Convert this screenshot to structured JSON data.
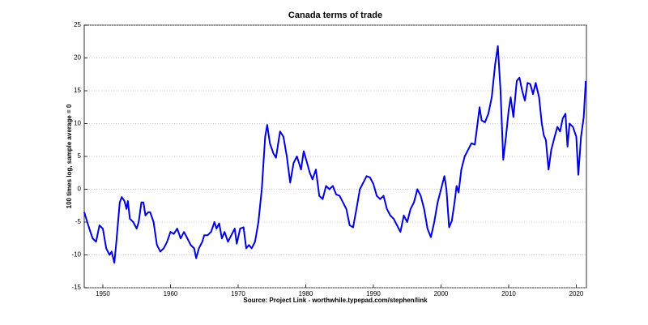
{
  "chart_data": {
    "type": "line",
    "title": "Canada terms of trade",
    "ylabel": "100 times log, sample average = 0",
    "source": "Source: Project Link - worthwhile.typepad.com/stephen/link",
    "color": "#0000dd",
    "grid": true,
    "xlim": [
      1947.25,
      2021.5
    ],
    "ylim": [
      -15,
      25
    ],
    "xticks": [
      1950,
      1960,
      1970,
      1980,
      1990,
      2000,
      2010,
      2020
    ],
    "yticks": [
      -15,
      -10,
      -5,
      0,
      5,
      10,
      15,
      20,
      25
    ],
    "x": [
      1947.25,
      1948,
      1948.5,
      1949,
      1949.5,
      1950,
      1950.5,
      1951,
      1951.3,
      1951.7,
      1952,
      1952.5,
      1952.8,
      1953.2,
      1953.5,
      1953.7,
      1954,
      1954.5,
      1955,
      1955.3,
      1955.7,
      1956,
      1956.3,
      1956.7,
      1957,
      1957.5,
      1958,
      1958.5,
      1959,
      1959.5,
      1960,
      1960.5,
      1961,
      1961.5,
      1962,
      1962.5,
      1963,
      1963.5,
      1963.8,
      1964.2,
      1964.7,
      1965,
      1965.5,
      1966,
      1966.5,
      1966.8,
      1967.2,
      1967.6,
      1968,
      1968.5,
      1969,
      1969.5,
      1969.8,
      1970.3,
      1970.8,
      1971.2,
      1971.6,
      1972,
      1972.5,
      1973,
      1973.5,
      1974,
      1974.3,
      1974.7,
      1975.2,
      1975.6,
      1976.2,
      1976.7,
      1977.2,
      1977.7,
      1978.2,
      1978.7,
      1979.3,
      1979.7,
      1980.2,
      1980.6,
      1981,
      1981.5,
      1982,
      1982.5,
      1983,
      1983.5,
      1984,
      1984.5,
      1985,
      1985.5,
      1986,
      1986.5,
      1987,
      1987.5,
      1988,
      1988.5,
      1989,
      1989.5,
      1990,
      1990.5,
      1991,
      1991.5,
      1992,
      1992.5,
      1993,
      1993.5,
      1994,
      1994.5,
      1995,
      1995.5,
      1996,
      1996.5,
      1997,
      1997.5,
      1998,
      1998.5,
      1999,
      1999.5,
      2000,
      2000.5,
      2000.8,
      2001.2,
      2001.6,
      2002,
      2002.3,
      2002.6,
      2003,
      2003.5,
      2004,
      2004.5,
      2005,
      2005.4,
      2005.7,
      2006,
      2006.5,
      2007,
      2007.5,
      2008,
      2008.4,
      2008.8,
      2009.2,
      2009.6,
      2010,
      2010.3,
      2010.7,
      2011.2,
      2011.6,
      2012,
      2012.4,
      2012.8,
      2013.2,
      2013.6,
      2014,
      2014.5,
      2014.9,
      2015.2,
      2015.5,
      2015.9,
      2016.3,
      2016.8,
      2017.2,
      2017.6,
      2018,
      2018.4,
      2018.7,
      2019,
      2019.5,
      2020,
      2020.3,
      2020.7,
      2021.1,
      2021.4
    ],
    "values": [
      -3.5,
      -6,
      -7.5,
      -8,
      -5.5,
      -6,
      -9,
      -10,
      -9.5,
      -11.2,
      -8,
      -2,
      -1.2,
      -1.8,
      -3,
      -1.8,
      -4.5,
      -5,
      -6,
      -5,
      -2,
      -2,
      -4,
      -3.5,
      -3.5,
      -5,
      -8.5,
      -9.5,
      -9,
      -8,
      -6.5,
      -6.8,
      -6,
      -7.5,
      -6.5,
      -7.5,
      -8.5,
      -9,
      -10.5,
      -9,
      -8,
      -7,
      -7,
      -6.5,
      -5,
      -6,
      -5.2,
      -7.5,
      -6.5,
      -8,
      -7,
      -6,
      -8.3,
      -6,
      -5.8,
      -9,
      -8.5,
      -9,
      -8,
      -5,
      0,
      8,
      9.8,
      7,
      5.5,
      4.8,
      8.8,
      8,
      5,
      1,
      4,
      5,
      3,
      5.8,
      4,
      2.5,
      1.5,
      3,
      -1,
      -1.5,
      0.5,
      0,
      0.5,
      -0.8,
      -1,
      -2,
      -3,
      -5.5,
      -5.8,
      -3,
      0,
      1,
      2,
      1.8,
      0.8,
      -1,
      -1.5,
      -1,
      -3,
      -4,
      -4.5,
      -5.5,
      -6.5,
      -4,
      -5,
      -3,
      -2,
      0,
      -1,
      -3,
      -6,
      -7.3,
      -5,
      -2,
      0,
      2,
      0,
      -5.8,
      -4.8,
      -2,
      0.5,
      -0.5,
      3,
      5,
      6,
      7,
      6.8,
      10,
      12.5,
      10.5,
      10.2,
      11.5,
      14,
      19,
      21.8,
      15,
      4.5,
      8,
      12,
      14,
      11,
      16.5,
      17,
      15,
      13.5,
      16.2,
      16,
      14.5,
      16.2,
      14,
      10,
      8.2,
      7.5,
      3,
      6,
      8,
      9.5,
      8.8,
      10.8,
      11.5,
      6.5,
      10,
      9.5,
      8,
      2.2,
      8,
      11,
      16.5
    ]
  }
}
